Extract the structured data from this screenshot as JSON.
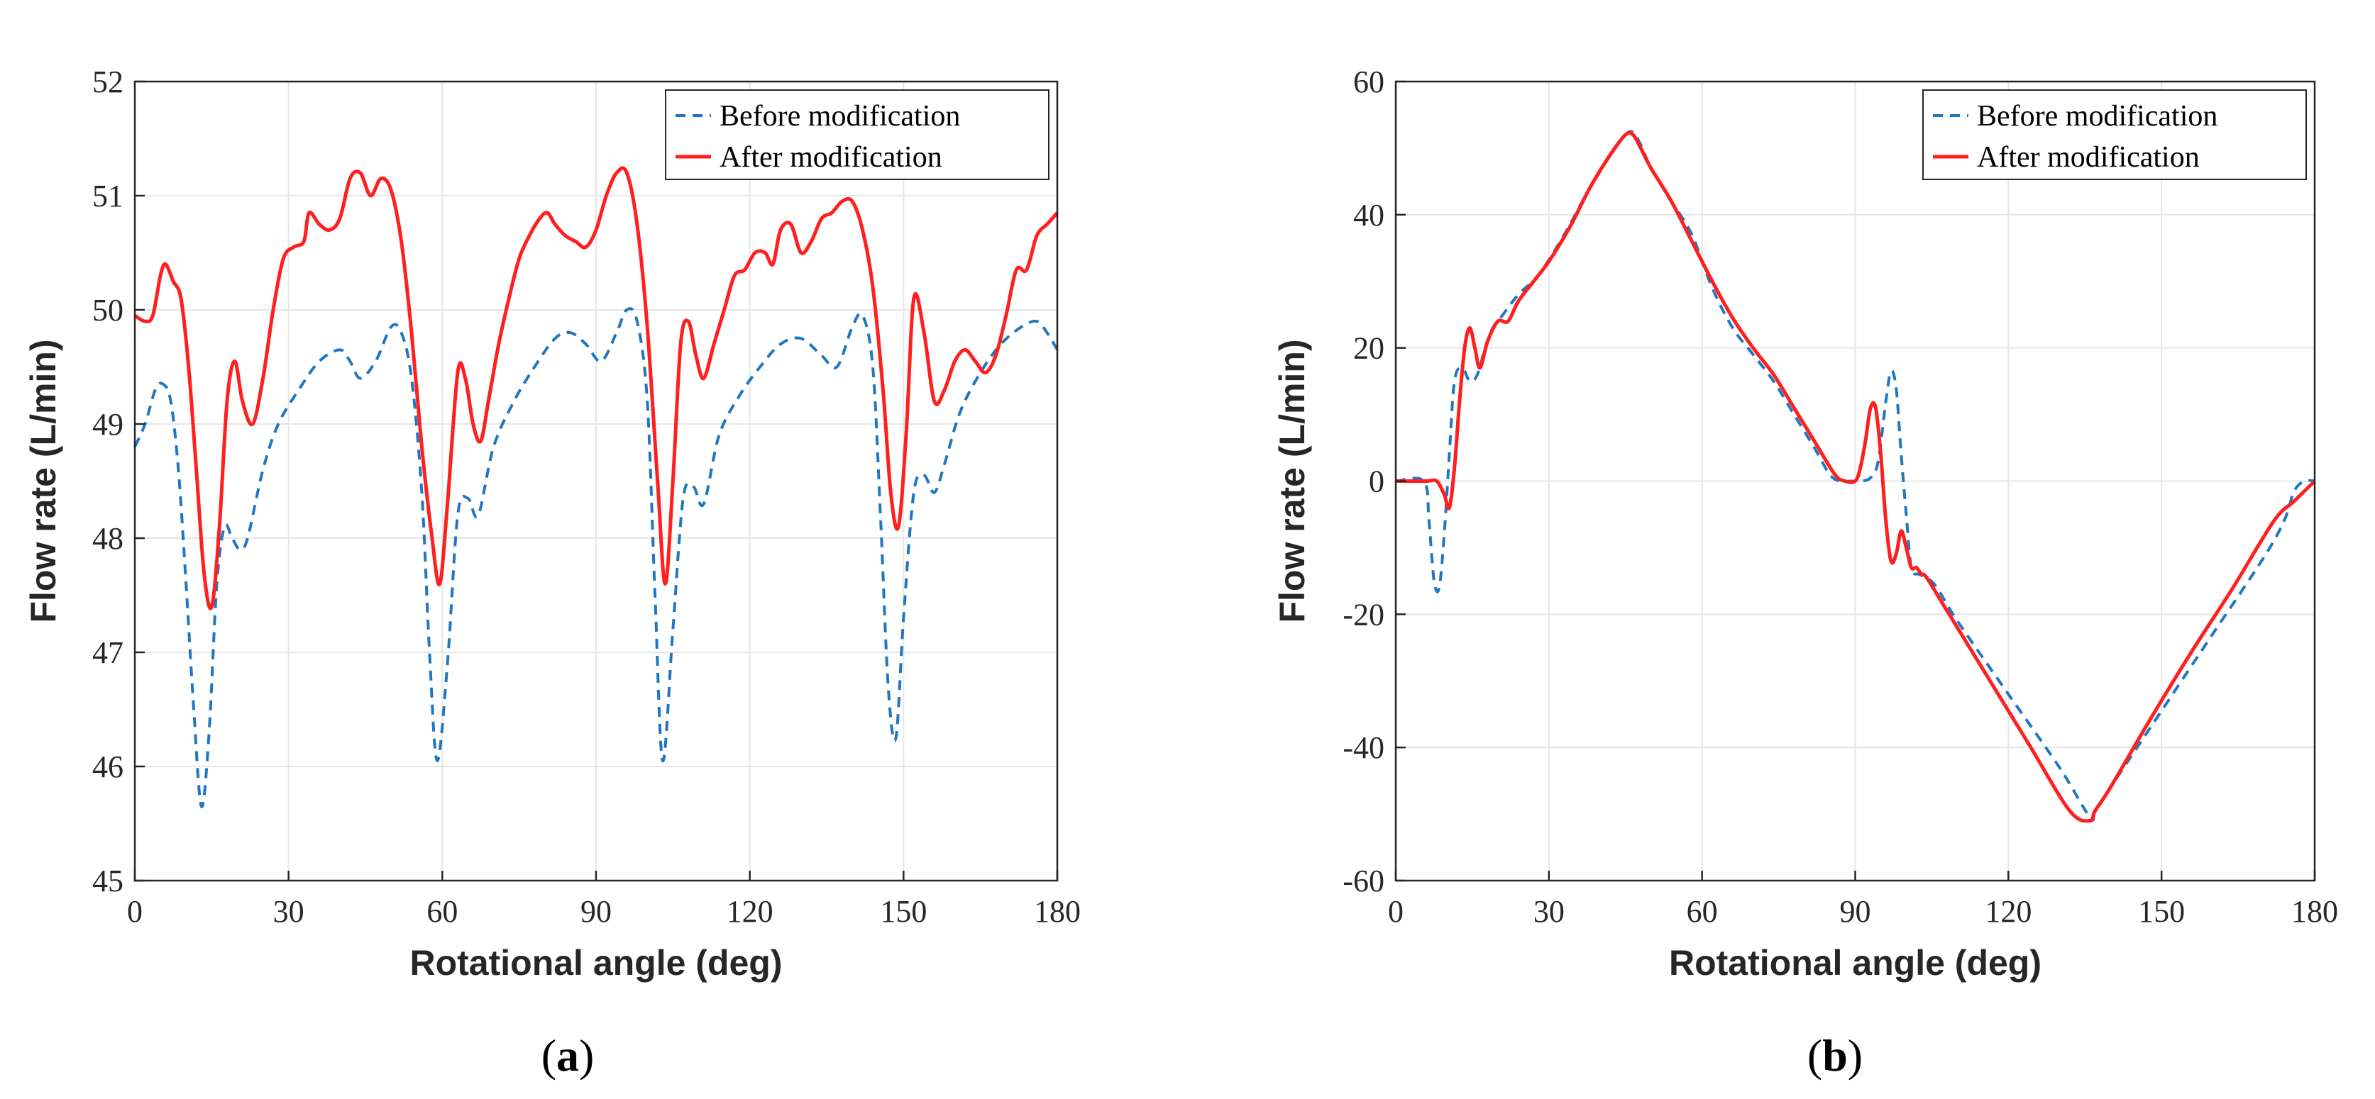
{
  "colors": {
    "before": "#1f77c4",
    "after": "#ff1f1f",
    "grid": "#e6e6e6",
    "axis": "#262626"
  },
  "chart_data": [
    {
      "type": "line",
      "panel": "a",
      "caption_open": "(",
      "caption_letter": "a",
      "caption_close": ")",
      "xlabel": "Rotational angle (deg)",
      "ylabel": "Flow rate (L/min)",
      "xlim": [
        0,
        180
      ],
      "ylim": [
        45,
        52
      ],
      "xticks": [
        0,
        30,
        60,
        90,
        120,
        150,
        180
      ],
      "yticks": [
        45,
        46,
        47,
        48,
        49,
        50,
        51,
        52
      ],
      "grid": true,
      "legend": "top-right",
      "series": [
        {
          "name": "Before modification",
          "style": "dashed",
          "x": [
            0,
            2,
            4,
            5.5,
            7,
            8.5,
            10,
            11.5,
            13,
            14.5,
            16,
            17.5,
            19,
            20.5,
            22,
            25,
            28,
            32,
            36,
            40,
            42,
            44,
            47,
            50,
            52,
            54,
            56,
            57.5,
            59,
            61,
            63,
            65,
            67,
            70,
            74,
            78,
            82,
            85,
            88,
            91,
            94,
            96,
            98,
            100,
            101.5,
            103,
            105,
            107,
            109,
            111,
            114,
            118,
            122,
            126,
            130,
            134,
            137,
            140,
            142,
            144,
            145.5,
            147,
            148.5,
            150,
            152,
            154,
            156,
            158,
            161,
            165,
            169,
            173,
            176,
            178,
            180
          ],
          "y": [
            48.8,
            49.0,
            49.3,
            49.35,
            49.2,
            48.6,
            47.6,
            46.5,
            45.65,
            46.3,
            47.6,
            48.1,
            48.0,
            47.9,
            48.0,
            48.6,
            49.0,
            49.3,
            49.55,
            49.65,
            49.55,
            49.4,
            49.55,
            49.85,
            49.8,
            49.4,
            48.4,
            47.0,
            46.05,
            46.9,
            48.2,
            48.35,
            48.2,
            48.8,
            49.2,
            49.5,
            49.75,
            49.8,
            49.7,
            49.55,
            49.8,
            50.0,
            49.9,
            49.2,
            47.5,
            46.05,
            47.2,
            48.35,
            48.45,
            48.3,
            48.9,
            49.25,
            49.5,
            49.7,
            49.75,
            49.6,
            49.5,
            49.85,
            49.95,
            49.5,
            48.2,
            46.7,
            46.25,
            47.3,
            48.4,
            48.55,
            48.4,
            48.65,
            49.1,
            49.45,
            49.7,
            49.85,
            49.9,
            49.8,
            49.65
          ]
        },
        {
          "name": "After modification",
          "style": "solid",
          "x": [
            0,
            2,
            3.5,
            5,
            6,
            7.5,
            9,
            10.5,
            12,
            13.5,
            15,
            16.5,
            18,
            19.5,
            21,
            23,
            25,
            27,
            29,
            31,
            33,
            34,
            36,
            38,
            40,
            42,
            44,
            46,
            48,
            50,
            52,
            54,
            56,
            58,
            59.5,
            61,
            63,
            64.5,
            66,
            67.5,
            69,
            71,
            73,
            75,
            77,
            79,
            80.5,
            82,
            84,
            86,
            88,
            90,
            92,
            94,
            96,
            98,
            100,
            102,
            103.5,
            105,
            106.5,
            108,
            109.5,
            111,
            113,
            115,
            117,
            119,
            121,
            123,
            124.5,
            126,
            128,
            130,
            132,
            134,
            136,
            138,
            140,
            142,
            144,
            146,
            147.5,
            149,
            150.5,
            152,
            154,
            156,
            158,
            160,
            162,
            164,
            166,
            168,
            170,
            172,
            174,
            176,
            178,
            180
          ],
          "y": [
            49.95,
            49.9,
            49.95,
            50.3,
            50.4,
            50.25,
            50.1,
            49.5,
            48.6,
            47.7,
            47.4,
            48.1,
            49.2,
            49.55,
            49.2,
            49.0,
            49.4,
            50.0,
            50.45,
            50.55,
            50.6,
            50.85,
            50.75,
            50.7,
            50.8,
            51.15,
            51.2,
            51.0,
            51.15,
            51.05,
            50.6,
            49.8,
            48.8,
            48.0,
            47.6,
            48.3,
            49.45,
            49.4,
            49.0,
            48.85,
            49.2,
            49.7,
            50.1,
            50.45,
            50.65,
            50.8,
            50.85,
            50.75,
            50.65,
            50.6,
            50.55,
            50.7,
            51.0,
            51.2,
            51.2,
            50.75,
            49.85,
            48.5,
            47.6,
            48.5,
            49.7,
            49.9,
            49.6,
            49.4,
            49.7,
            50.0,
            50.3,
            50.35,
            50.5,
            50.5,
            50.4,
            50.7,
            50.75,
            50.5,
            50.6,
            50.8,
            50.85,
            50.95,
            50.95,
            50.7,
            50.2,
            49.3,
            48.4,
            48.1,
            48.9,
            50.1,
            49.8,
            49.2,
            49.3,
            49.55,
            49.65,
            49.55,
            49.45,
            49.6,
            49.95,
            50.35,
            50.35,
            50.65,
            50.75,
            50.85
          ]
        }
      ]
    },
    {
      "type": "line",
      "panel": "b",
      "caption_open": "(",
      "caption_letter": "b",
      "caption_close": ")",
      "xlabel": "Rotational angle (deg)",
      "ylabel": "Flow rate (L/min)",
      "xlim": [
        0,
        180
      ],
      "ylim": [
        -60,
        60
      ],
      "xticks": [
        0,
        30,
        60,
        90,
        120,
        150,
        180
      ],
      "yticks": [
        -60,
        -40,
        -20,
        0,
        20,
        40,
        60
      ],
      "grid": true,
      "legend": "top-right",
      "series": [
        {
          "name": "Before modification",
          "style": "dashed",
          "x": [
            0,
            5.5,
            6.5,
            7.5,
            8.5,
            9.5,
            10.5,
            11.5,
            13,
            14.5,
            16,
            17.5,
            19,
            21,
            24,
            28,
            33,
            38,
            43,
            46,
            48,
            50,
            54,
            58,
            62,
            66,
            70,
            74,
            78,
            82,
            85,
            87,
            89,
            91,
            93,
            94.5,
            96,
            97,
            98,
            99,
            100,
            101,
            102.5,
            104,
            106,
            110,
            120,
            130,
            136,
            137,
            140,
            150,
            160,
            170,
            174,
            176,
            178,
            180
          ],
          "y": [
            0,
            0,
            -6,
            -15,
            -16,
            -8,
            4,
            15,
            17,
            15,
            16,
            20,
            23,
            25,
            28,
            31,
            37,
            44,
            50,
            52.5,
            50.5,
            47,
            42,
            37,
            29,
            23,
            19,
            15,
            10,
            5,
            1,
            0,
            0,
            0,
            0.5,
            3,
            12,
            16.5,
            14,
            4,
            -5,
            -13,
            -14,
            -14.5,
            -16,
            -21,
            -32,
            -43,
            -50.5,
            -49.5,
            -46,
            -34.5,
            -23,
            -11.5,
            -6,
            -1.5,
            0,
            0
          ]
        },
        {
          "name": "After modification",
          "style": "solid",
          "x": [
            0,
            6,
            8,
            9.5,
            10.5,
            11.5,
            12.5,
            13.5,
            14.5,
            15.5,
            16.5,
            18,
            20,
            22,
            24,
            27,
            30,
            34,
            38,
            42,
            45,
            46.5,
            48,
            50,
            54,
            58,
            62,
            66,
            70,
            74,
            78,
            82,
            86,
            88,
            90,
            91,
            92,
            93,
            94,
            95,
            96,
            97,
            98,
            99,
            100,
            101,
            102,
            103,
            104,
            108,
            116,
            124,
            132,
            136,
            137,
            140,
            148,
            156,
            164,
            172,
            176,
            180
          ],
          "y": [
            0,
            0,
            0,
            -2,
            -4,
            2,
            12,
            20,
            23,
            20,
            17,
            21,
            24,
            24,
            27,
            30,
            33,
            38,
            44,
            49,
            52,
            52,
            50,
            47,
            42,
            36,
            30,
            24.5,
            20,
            16,
            11,
            6,
            1,
            0,
            0,
            2,
            6,
            11,
            11,
            4,
            -6,
            -12,
            -11,
            -7.5,
            -10,
            -13,
            -13,
            -14,
            -14.5,
            -19.5,
            -29.5,
            -39.5,
            -49.5,
            -51,
            -49.5,
            -46,
            -35.5,
            -25.5,
            -16,
            -6,
            -3,
            0
          ]
        }
      ]
    }
  ]
}
